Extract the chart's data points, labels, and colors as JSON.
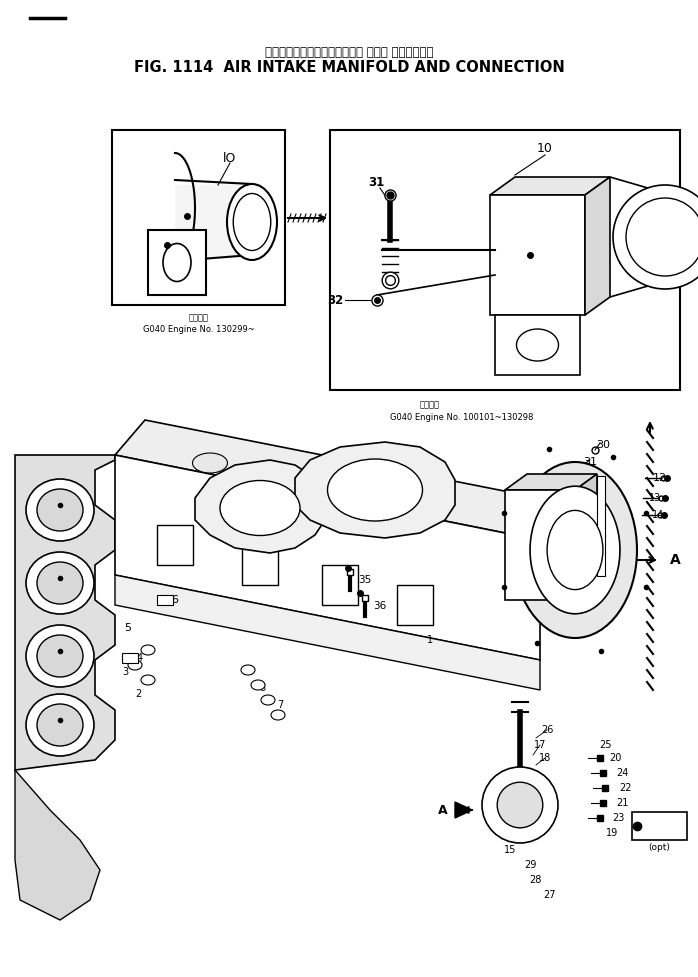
{
  "title_japanese": "エアーインテークマニホールド および コネクション",
  "title_english": "FIG. 1114  AIR INTAKE MANIFOLD AND CONNECTION",
  "bg_color": "#ffffff",
  "line_color": "#000000",
  "fig_width": 6.98,
  "fig_height": 9.77,
  "dpi": 100,
  "caption_tl": "G040 Engine No. 130299~",
  "caption_tr": "G040 Engine No. 100101~130298",
  "caption_kanji": "図用番号",
  "label_10_a": "lO",
  "label_10_b": "10",
  "label_31": "31",
  "label_32": "32"
}
